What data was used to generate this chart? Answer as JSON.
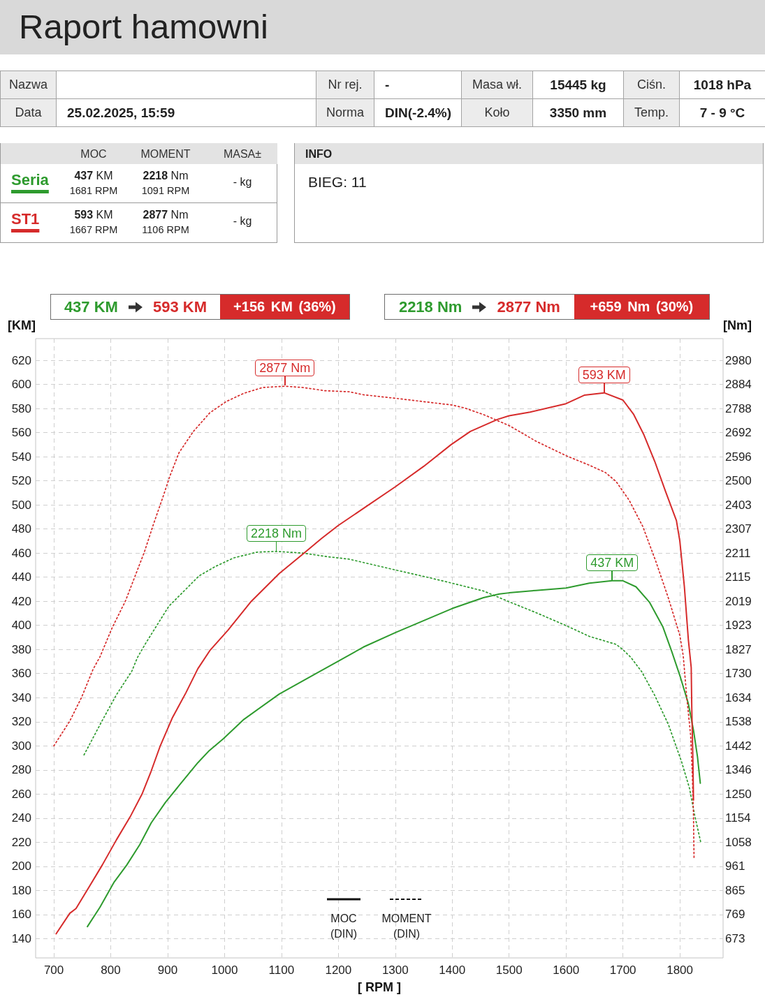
{
  "chart_data": {
    "type": "line",
    "title": "Raport hamowni",
    "xlabel": "[ RPM ]",
    "ylabel": "[KM]",
    "y2label": "[Nm]",
    "annotations": [
      "Nazwa",
      "Nr rej.",
      "-",
      "Masa wł.",
      "15445 kg",
      "Ciśn.",
      "1018 hPa",
      "Data",
      "25.02.2025, 15:59",
      "Norma",
      "DIN(-2.4%)",
      "Koło",
      "3350 mm",
      "Temp.",
      "7 - 9 °C",
      "MOC",
      "MOMENT",
      "MASA±",
      "437 KM",
      "1681 RPM",
      "2218 Nm",
      "1091 RPM",
      "- kg",
      "593 KM",
      "1667 RPM",
      "2877 Nm",
      "1106 RPM",
      "- kg",
      "INFO",
      "BIEG: 11",
      "437 KM",
      "593 KM",
      "+156 KM (36%)",
      "2218 Nm",
      "2877 Nm",
      "+659 Nm (30%)",
      "MOC (DIN)",
      "MOMENT (DIN)",
      "2218 Nm",
      "2877 Nm",
      {
        "text": "593 KM",
        "x": 1667,
        "y": 593
      },
      {
        "text": "437 KM",
        "x": 1681,
        "y": 437
      }
    ],
    "xlim": [
      668,
      1876
    ],
    "xticks": [
      700,
      800,
      900,
      1000,
      1100,
      1200,
      1300,
      1400,
      1500,
      1600,
      1700,
      1800
    ],
    "ylim": [
      124,
      638
    ],
    "yticks": [
      140,
      160,
      180,
      200,
      220,
      240,
      260,
      280,
      300,
      320,
      340,
      360,
      380,
      400,
      420,
      440,
      460,
      480,
      500,
      520,
      540,
      560,
      580,
      600,
      620
    ],
    "y2lim": [
      596,
      3067
    ],
    "y2ticks": [
      673,
      769,
      865,
      961,
      1058,
      1154,
      1250,
      1346,
      1442,
      1538,
      1634,
      1730,
      1827,
      1923,
      2019,
      2115,
      2211,
      2307,
      2403,
      2500,
      2596,
      2692,
      2788,
      2884,
      2980
    ],
    "grid": true,
    "legend": "top left",
    "series": [
      {
        "name": "Seria",
        "color": "#2e9b2e",
        "line_style": "solid",
        "x": [
          759,
          781,
          806,
          828,
          851,
          871,
          896,
          920,
          953,
          973,
          998,
          1034,
          1096,
          1157,
          1199,
          1244,
          1300,
          1400,
          1455,
          1483,
          1500,
          1547,
          1600,
          1641,
          1681,
          1700,
          1723,
          1747,
          1770,
          1786,
          1801,
          1815,
          1824,
          1831,
          1836
        ],
        "values": [
          150,
          166,
          187,
          201,
          218,
          236,
          253,
          267,
          286,
          296,
          306,
          322,
          343,
          359,
          370,
          382,
          394,
          414,
          423,
          426,
          427,
          429,
          431,
          435,
          437,
          437,
          432,
          419,
          399,
          378,
          357,
          335,
          313,
          291,
          269
        ]
      },
      {
        "color": "#2e9b2e",
        "line_style": "dotted",
        "axis": "y2",
        "x": [
          753,
          785,
          810,
          837,
          847,
          861,
          902,
          935,
          955,
          984,
          1016,
          1057,
          1091,
          1139,
          1180,
          1219,
          1300,
          1360,
          1400,
          1455,
          1500,
          1547,
          1600,
          1641,
          1688,
          1700,
          1714,
          1733,
          1756,
          1780,
          1803,
          1817,
          1826,
          1837
        ],
        "values": [
          1406,
          1543,
          1646,
          1740,
          1795,
          1850,
          1999,
          2074,
          2120,
          2158,
          2192,
          2215,
          2218,
          2211,
          2197,
          2187,
          2144,
          2113,
          2091,
          2060,
          2017,
          1974,
          1922,
          1879,
          1847,
          1826,
          1795,
          1738,
          1643,
          1527,
          1379,
          1273,
          1166,
          1055
        ]
      },
      {
        "name": "ST1",
        "color": "#d62b2b",
        "line_style": "solid",
        "x": [
          704,
          728,
          739,
          757,
          785,
          810,
          834,
          855,
          871,
          887,
          908,
          932,
          953,
          974,
          1006,
          1047,
          1096,
          1137,
          1170,
          1200,
          1250,
          1300,
          1350,
          1398,
          1432,
          1480,
          1500,
          1537,
          1600,
          1632,
          1667,
          1700,
          1719,
          1737,
          1756,
          1775,
          1794,
          1800,
          1808,
          1815,
          1820,
          1821,
          1823,
          1824
        ],
        "values": [
          144,
          161,
          165,
          179,
          201,
          222,
          241,
          260,
          279,
          300,
          323,
          344,
          364,
          379,
          396,
          420,
          443,
          459,
          472,
          483,
          499,
          515,
          532,
          550,
          561,
          571,
          574,
          577,
          584,
          591,
          593,
          587,
          575,
          558,
          536,
          511,
          487,
          470,
          432,
          388,
          365,
          331,
          287,
          255
        ]
      },
      {
        "color": "#d62b2b",
        "line_style": "dotted",
        "axis": "y2",
        "x": [
          700,
          728,
          749,
          769,
          781,
          802,
          826,
          859,
          875,
          892,
          904,
          920,
          945,
          974,
          1003,
          1034,
          1067,
          1106,
          1137,
          1177,
          1219,
          1244,
          1300,
          1400,
          1422,
          1455,
          1500,
          1547,
          1600,
          1641,
          1669,
          1688,
          1711,
          1735,
          1758,
          1780,
          1800,
          1806,
          1812,
          1819,
          1822,
          1824,
          1825
        ],
        "values": [
          1442,
          1541,
          1637,
          1748,
          1797,
          1911,
          2021,
          2215,
          2326,
          2437,
          2519,
          2612,
          2696,
          2771,
          2816,
          2849,
          2872,
          2877,
          2872,
          2859,
          2855,
          2843,
          2829,
          2802,
          2790,
          2764,
          2720,
          2658,
          2600,
          2562,
          2533,
          2497,
          2422,
          2317,
          2177,
          2031,
          1883,
          1801,
          1641,
          1483,
          1324,
          1166,
          992
        ]
      }
    ]
  }
}
